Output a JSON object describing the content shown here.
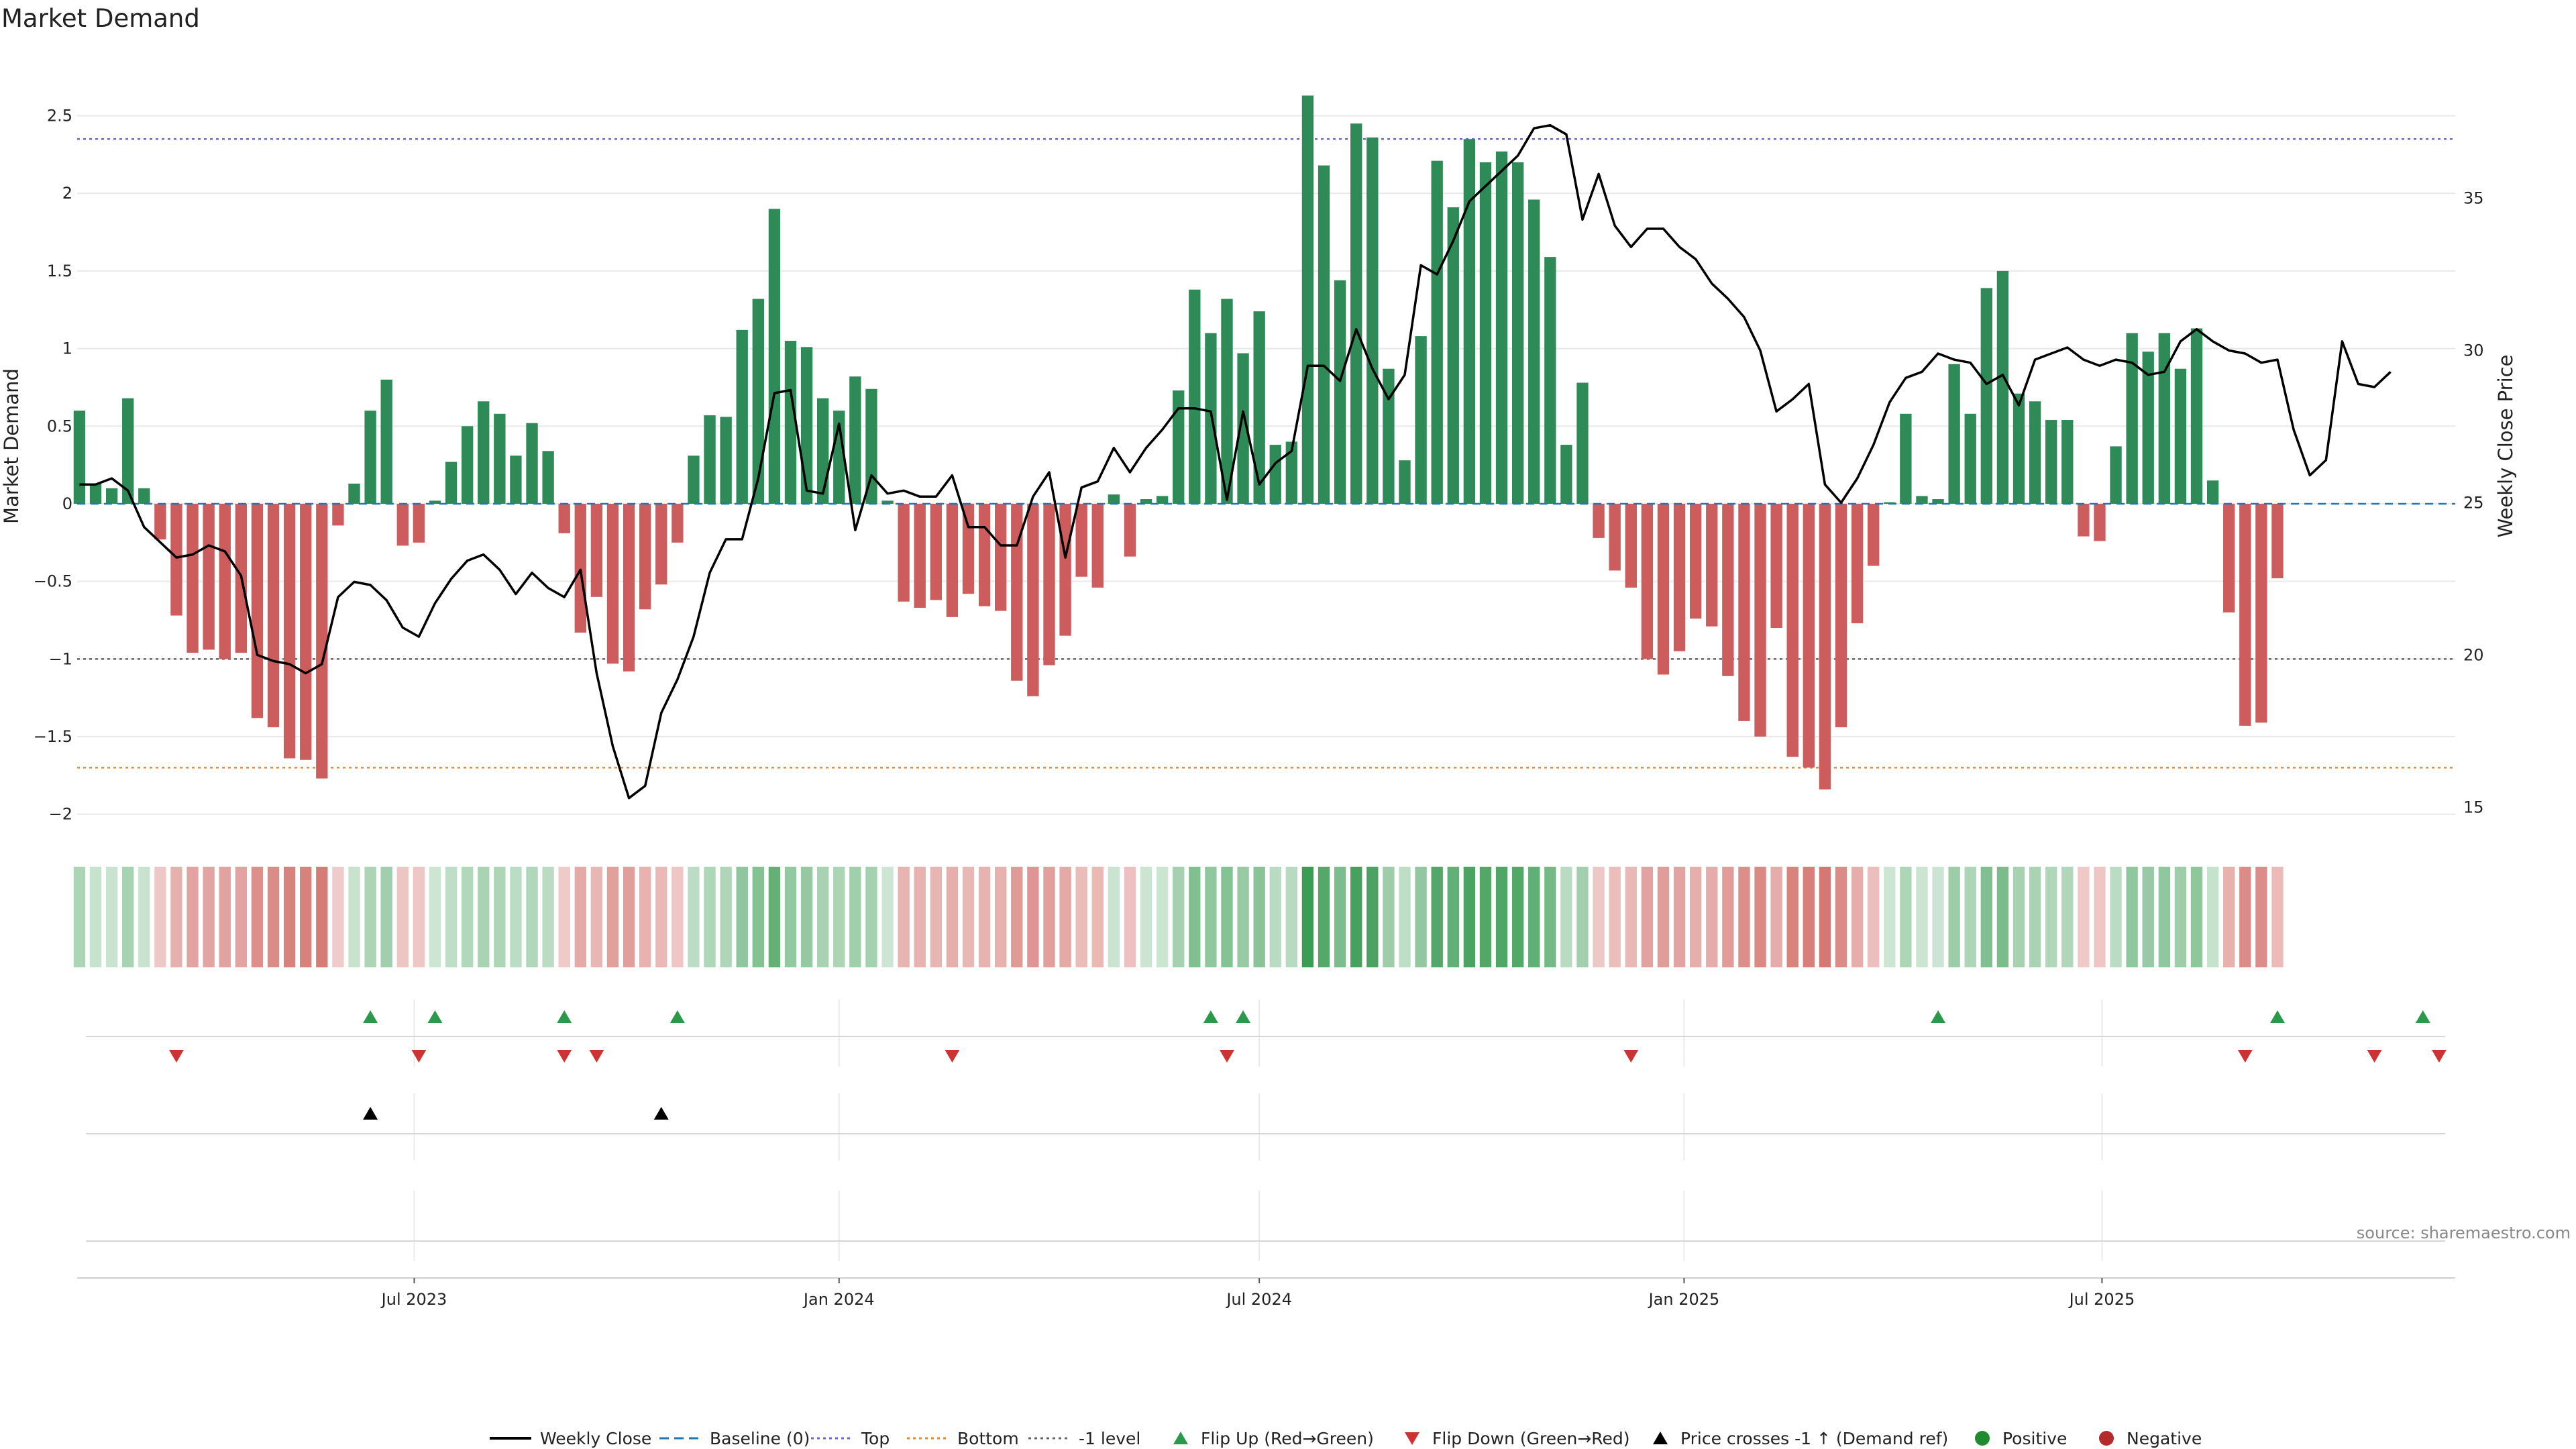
{
  "title": "Market Demand",
  "source": "source: sharemaestro.com",
  "chart_data": {
    "type": "bar",
    "title": "Market Demand",
    "ylabel": "Market Demand",
    "y2label": "Weekly Close Price",
    "ylim": [
      -2.2,
      2.9
    ],
    "y2lim": [
      13.75,
      39.75
    ],
    "xlim": [
      "2023-02-05",
      "2025-12-01"
    ],
    "y_ticks": [
      -2,
      -1.5,
      -1,
      -0.5,
      0,
      0.5,
      1,
      1.5,
      2,
      2.5
    ],
    "y_tick_labels": [
      "−2",
      "−1.5",
      "−1",
      "−0.5",
      "0",
      "0.5",
      "1",
      "1.5",
      "2",
      "2.5"
    ],
    "y2_ticks": [
      15,
      20,
      25,
      30,
      35
    ],
    "x_ticks": [
      {
        "date": "2023-07-01",
        "label": "Jul 2023"
      },
      {
        "date": "2024-01-01",
        "label": "Jan 2024"
      },
      {
        "date": "2024-07-01",
        "label": "Jul 2024"
      },
      {
        "date": "2025-01-01",
        "label": "Jan 2025"
      },
      {
        "date": "2025-07-01",
        "label": "Jul 2025"
      }
    ],
    "first_week": "2023-02-06",
    "reference_lines": [
      {
        "name": "Top",
        "value": 2.35,
        "color": "#6a6ad0"
      },
      {
        "name": "Bottom",
        "value": -1.7,
        "color": "#e08a3c"
      },
      {
        "name": "-1 level",
        "value": -1.0,
        "color": "#666666"
      }
    ],
    "series": [
      {
        "name": "Weekly Close",
        "axis": "right",
        "values": [
          25.6,
          25.6,
          25.8,
          25.4,
          24.2,
          23.7,
          23.2,
          23.3,
          23.6,
          23.4,
          22.6,
          20.0,
          19.8,
          19.7,
          19.4,
          19.7,
          21.9,
          22.4,
          22.3,
          21.8,
          20.9,
          20.6,
          21.7,
          22.5,
          23.1,
          23.3,
          22.8,
          22.0,
          22.7,
          22.2,
          21.9,
          22.8,
          19.4,
          17.0,
          15.3,
          15.7,
          18.1,
          19.2,
          20.6,
          22.7,
          23.8,
          23.8,
          25.8,
          28.6,
          28.7,
          25.4,
          25.3,
          27.6,
          24.1,
          25.9,
          25.3,
          25.4,
          25.2,
          25.2,
          25.9,
          24.2,
          24.2,
          23.6,
          23.6,
          25.2,
          26.0,
          23.2,
          25.5,
          25.7,
          26.8,
          26.0,
          26.8,
          27.4,
          28.1,
          28.1,
          28.0,
          25.1,
          28.0,
          25.6,
          26.3,
          26.7,
          29.5,
          29.5,
          29.0,
          30.7,
          29.4,
          28.4,
          29.2,
          32.8,
          32.5,
          33.6,
          34.9,
          35.4,
          35.9,
          36.4,
          37.3,
          37.4,
          37.1,
          34.3,
          35.8,
          34.1,
          33.4,
          34.0,
          34.0,
          33.4,
          33.0,
          32.2,
          31.7,
          31.1,
          30.0,
          28.0,
          28.4,
          28.9,
          25.6,
          25.0,
          25.8,
          26.9,
          28.3,
          29.1,
          29.3,
          29.9,
          29.7,
          29.6,
          28.9,
          29.2,
          28.2,
          29.7,
          29.9,
          30.1,
          29.7,
          29.5,
          29.7,
          29.6,
          29.2,
          29.3,
          30.3,
          30.7,
          30.3,
          30.0,
          29.9,
          29.6,
          29.7,
          27.4,
          25.9,
          26.4,
          30.3,
          28.9,
          28.8,
          29.3
        ]
      },
      {
        "name": "Market Demand",
        "axis": "left",
        "values": [
          0.6,
          0.13,
          0.1,
          0.68,
          0.1,
          -0.23,
          -0.72,
          -0.96,
          -0.94,
          -1.0,
          -0.96,
          -1.38,
          -1.44,
          -1.64,
          -1.65,
          -1.77,
          -0.14,
          0.13,
          0.6,
          0.8,
          -0.27,
          -0.25,
          0.02,
          0.27,
          0.5,
          0.66,
          0.58,
          0.31,
          0.52,
          0.34,
          -0.19,
          -0.83,
          -0.6,
          -1.03,
          -1.08,
          -0.68,
          -0.52,
          -0.25,
          0.31,
          0.57,
          0.56,
          1.12,
          1.32,
          1.9,
          1.05,
          1.01,
          0.68,
          0.6,
          0.82,
          0.74,
          0.02,
          -0.63,
          -0.67,
          -0.62,
          -0.73,
          -0.58,
          -0.66,
          -0.69,
          -1.14,
          -1.24,
          -1.04,
          -0.85,
          -0.47,
          -0.54,
          0.06,
          -0.34,
          0.03,
          0.05,
          0.73,
          1.38,
          1.1,
          1.32,
          0.97,
          1.24,
          0.38,
          0.4,
          2.63,
          2.18,
          1.44,
          2.45,
          2.36,
          0.87,
          0.28,
          1.08,
          2.21,
          1.91,
          2.35,
          2.2,
          2.27,
          2.2,
          1.96,
          1.59,
          0.38,
          0.78,
          -0.22,
          -0.43,
          -0.54,
          -1.0,
          -1.1,
          -0.95,
          -0.74,
          -0.79,
          -1.11,
          -1.4,
          -1.5,
          -0.8,
          -1.63,
          -1.7,
          -1.84,
          -1.44,
          -0.77,
          -0.4,
          0.01,
          0.58,
          0.05,
          0.03,
          0.9,
          0.58,
          1.39,
          1.5,
          0.71,
          0.66,
          0.54,
          0.54,
          -0.21,
          -0.24,
          0.37,
          1.1,
          0.98,
          1.1,
          0.87,
          1.13,
          0.15,
          -0.7,
          -1.43,
          -1.41,
          -0.48
        ]
      }
    ],
    "demand_strip": {
      "positive_color": "#3a9b52",
      "negative_color": "#c9504a"
    },
    "flip_up_dates": [
      "2023-06-12",
      "2023-07-10",
      "2023-09-04",
      "2023-10-23",
      "2024-06-10",
      "2024-06-24",
      "2025-04-21",
      "2025-09-15",
      "2025-11-17"
    ],
    "flip_down_dates": [
      "2023-03-20",
      "2023-07-03",
      "2023-09-04",
      "2023-09-18",
      "2024-02-19",
      "2024-06-17",
      "2024-12-09",
      "2025-09-01",
      "2025-10-27",
      "2025-11-24"
    ],
    "price_cross_dates": [
      "2023-06-12",
      "2023-10-16"
    ],
    "legend": {
      "placement": "bottom",
      "items": [
        {
          "label": "Weekly Close",
          "kind": "line",
          "color": "#000000"
        },
        {
          "label": "Baseline (0)",
          "kind": "dash",
          "color": "#1f77b4"
        },
        {
          "label": "Top",
          "kind": "dot",
          "color": "#6a6ad0"
        },
        {
          "label": "Bottom",
          "kind": "dot",
          "color": "#e08a3c"
        },
        {
          "label": "-1 level",
          "kind": "dot",
          "color": "#666666"
        },
        {
          "label": "Flip Up (Red→Green)",
          "kind": "tri-up",
          "color": "#2a9a4a"
        },
        {
          "label": "Flip Down (Green→Red)",
          "kind": "tri-down",
          "color": "#cc3333"
        },
        {
          "label": "Price crosses -1 ↑ (Demand ref)",
          "kind": "tri-up",
          "color": "#000000"
        },
        {
          "label": "Positive",
          "kind": "circle",
          "color": "#1f8a2e"
        },
        {
          "label": "Negative",
          "kind": "circle",
          "color": "#b52a2a"
        }
      ]
    },
    "colors": {
      "positive_bar": "#2e8b57",
      "negative_bar": "#cd5c5c",
      "price_line": "#000000"
    }
  }
}
